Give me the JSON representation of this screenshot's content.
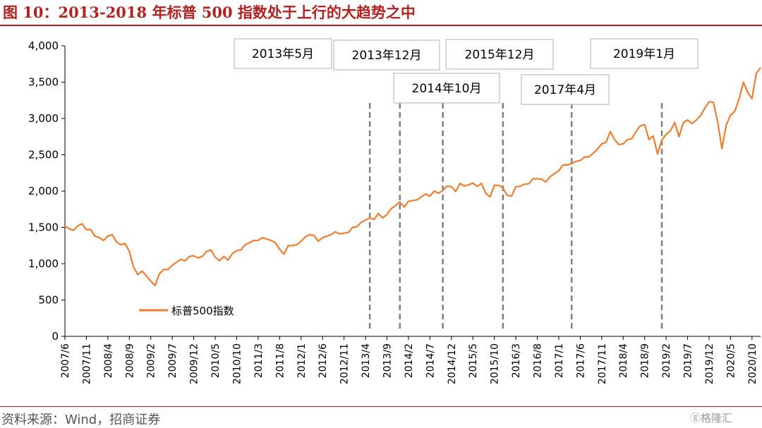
{
  "figure": {
    "title": "图 10：2013-2018 年标普 500 指数处于上行的大趋势之中",
    "source": "资料来源：Wind，招商证券",
    "watermark": "格隆汇",
    "colors": {
      "line": "#ed7d31",
      "rule": "#b22222",
      "dashed": "#7f7f7f"
    }
  },
  "chart_data": {
    "type": "line",
    "title": "",
    "xlabel": "",
    "ylabel": "",
    "ylim": [
      0,
      4000
    ],
    "yticks": [
      0,
      500,
      1000,
      1500,
      2000,
      2500,
      3000,
      3500,
      4000
    ],
    "ytick_labels": [
      "0",
      "500",
      "1,000",
      "1,500",
      "2,000",
      "2,500",
      "3,000",
      "3,500",
      "4,000"
    ],
    "xlim": [
      "2007/6",
      "2020/12"
    ],
    "xtick_labels": [
      "2007/6",
      "2007/11",
      "2008/4",
      "2008/9",
      "2009/2",
      "2009/7",
      "2009/12",
      "2010/5",
      "2010/10",
      "2011/3",
      "2011/8",
      "2012/1",
      "2012/6",
      "2012/11",
      "2013/4",
      "2013/9",
      "2014/2",
      "2014/7",
      "2014/12",
      "2015/5",
      "2015/10",
      "2016/3",
      "2016/8",
      "2017/1",
      "2017/6",
      "2017/11",
      "2018/4",
      "2018/9",
      "2019/2",
      "2019/7",
      "2019/12",
      "2020/5",
      "2020/10"
    ],
    "grid": false,
    "legend": {
      "position": "lower-left"
    },
    "series": [
      {
        "name": "标普500指数",
        "points": [
          [
            "2007/6",
            1520
          ],
          [
            "2007/7",
            1480
          ],
          [
            "2007/8",
            1460
          ],
          [
            "2007/9",
            1520
          ],
          [
            "2007/10",
            1550
          ],
          [
            "2007/11",
            1470
          ],
          [
            "2007/12",
            1470
          ],
          [
            "2008/1",
            1380
          ],
          [
            "2008/2",
            1360
          ],
          [
            "2008/3",
            1320
          ],
          [
            "2008/4",
            1380
          ],
          [
            "2008/5",
            1400
          ],
          [
            "2008/6",
            1300
          ],
          [
            "2008/7",
            1260
          ],
          [
            "2008/8",
            1280
          ],
          [
            "2008/9",
            1170
          ],
          [
            "2008/10",
            950
          ],
          [
            "2008/11",
            850
          ],
          [
            "2008/12",
            900
          ],
          [
            "2009/1",
            830
          ],
          [
            "2009/2",
            760
          ],
          [
            "2009/3",
            700
          ],
          [
            "2009/4",
            860
          ],
          [
            "2009/5",
            920
          ],
          [
            "2009/6",
            920
          ],
          [
            "2009/7",
            980
          ],
          [
            "2009/8",
            1020
          ],
          [
            "2009/9",
            1060
          ],
          [
            "2009/10",
            1040
          ],
          [
            "2009/11",
            1100
          ],
          [
            "2009/12",
            1110
          ],
          [
            "2010/1",
            1080
          ],
          [
            "2010/2",
            1100
          ],
          [
            "2010/3",
            1170
          ],
          [
            "2010/4",
            1190
          ],
          [
            "2010/5",
            1090
          ],
          [
            "2010/6",
            1040
          ],
          [
            "2010/7",
            1100
          ],
          [
            "2010/8",
            1050
          ],
          [
            "2010/9",
            1140
          ],
          [
            "2010/10",
            1180
          ],
          [
            "2010/11",
            1190
          ],
          [
            "2010/12",
            1260
          ],
          [
            "2011/1",
            1290
          ],
          [
            "2011/2",
            1320
          ],
          [
            "2011/3",
            1320
          ],
          [
            "2011/4",
            1360
          ],
          [
            "2011/5",
            1340
          ],
          [
            "2011/6",
            1320
          ],
          [
            "2011/7",
            1290
          ],
          [
            "2011/8",
            1200
          ],
          [
            "2011/9",
            1130
          ],
          [
            "2011/10",
            1250
          ],
          [
            "2011/11",
            1250
          ],
          [
            "2011/12",
            1260
          ],
          [
            "2012/1",
            1310
          ],
          [
            "2012/2",
            1370
          ],
          [
            "2012/3",
            1400
          ],
          [
            "2012/4",
            1390
          ],
          [
            "2012/5",
            1310
          ],
          [
            "2012/6",
            1360
          ],
          [
            "2012/7",
            1380
          ],
          [
            "2012/8",
            1400
          ],
          [
            "2012/9",
            1440
          ],
          [
            "2012/10",
            1410
          ],
          [
            "2012/11",
            1420
          ],
          [
            "2012/12",
            1430
          ],
          [
            "2013/1",
            1500
          ],
          [
            "2013/2",
            1510
          ],
          [
            "2013/3",
            1570
          ],
          [
            "2013/4",
            1600
          ],
          [
            "2013/5",
            1630
          ],
          [
            "2013/6",
            1610
          ],
          [
            "2013/7",
            1690
          ],
          [
            "2013/8",
            1630
          ],
          [
            "2013/9",
            1680
          ],
          [
            "2013/10",
            1760
          ],
          [
            "2013/11",
            1800
          ],
          [
            "2013/12",
            1850
          ],
          [
            "2014/1",
            1780
          ],
          [
            "2014/2",
            1860
          ],
          [
            "2014/3",
            1870
          ],
          [
            "2014/4",
            1880
          ],
          [
            "2014/5",
            1920
          ],
          [
            "2014/6",
            1960
          ],
          [
            "2014/7",
            1930
          ],
          [
            "2014/8",
            2000
          ],
          [
            "2014/9",
            1970
          ],
          [
            "2014/10",
            2010
          ],
          [
            "2014/11",
            2070
          ],
          [
            "2014/12",
            2060
          ],
          [
            "2015/1",
            1995
          ],
          [
            "2015/2",
            2105
          ],
          [
            "2015/3",
            2070
          ],
          [
            "2015/4",
            2085
          ],
          [
            "2015/5",
            2110
          ],
          [
            "2015/6",
            2065
          ],
          [
            "2015/7",
            2105
          ],
          [
            "2015/8",
            1970
          ],
          [
            "2015/9",
            1920
          ],
          [
            "2015/10",
            2080
          ],
          [
            "2015/11",
            2080
          ],
          [
            "2015/12",
            2045
          ],
          [
            "2016/1",
            1940
          ],
          [
            "2016/2",
            1930
          ],
          [
            "2016/3",
            2060
          ],
          [
            "2016/4",
            2065
          ],
          [
            "2016/5",
            2095
          ],
          [
            "2016/6",
            2100
          ],
          [
            "2016/7",
            2170
          ],
          [
            "2016/8",
            2170
          ],
          [
            "2016/9",
            2165
          ],
          [
            "2016/10",
            2125
          ],
          [
            "2016/11",
            2200
          ],
          [
            "2016/12",
            2240
          ],
          [
            "2017/1",
            2280
          ],
          [
            "2017/2",
            2360
          ],
          [
            "2017/3",
            2360
          ],
          [
            "2017/4",
            2380
          ],
          [
            "2017/5",
            2410
          ],
          [
            "2017/6",
            2420
          ],
          [
            "2017/7",
            2470
          ],
          [
            "2017/8",
            2470
          ],
          [
            "2017/9",
            2520
          ],
          [
            "2017/10",
            2575
          ],
          [
            "2017/11",
            2650
          ],
          [
            "2017/12",
            2670
          ],
          [
            "2018/1",
            2820
          ],
          [
            "2018/2",
            2710
          ],
          [
            "2018/3",
            2640
          ],
          [
            "2018/4",
            2650
          ],
          [
            "2018/5",
            2710
          ],
          [
            "2018/6",
            2720
          ],
          [
            "2018/7",
            2820
          ],
          [
            "2018/8",
            2900
          ],
          [
            "2018/9",
            2915
          ],
          [
            "2018/10",
            2710
          ],
          [
            "2018/11",
            2760
          ],
          [
            "2018/12",
            2510
          ],
          [
            "2019/1",
            2700
          ],
          [
            "2019/2",
            2780
          ],
          [
            "2019/3",
            2830
          ],
          [
            "2019/4",
            2945
          ],
          [
            "2019/5",
            2750
          ],
          [
            "2019/6",
            2940
          ],
          [
            "2019/7",
            2980
          ],
          [
            "2019/8",
            2930
          ],
          [
            "2019/9",
            2975
          ],
          [
            "2019/10",
            3040
          ],
          [
            "2019/11",
            3140
          ],
          [
            "2019/12",
            3230
          ],
          [
            "2020/1",
            3225
          ],
          [
            "2020/2",
            2955
          ],
          [
            "2020/3",
            2585
          ],
          [
            "2020/4",
            2910
          ],
          [
            "2020/5",
            3045
          ],
          [
            "2020/6",
            3100
          ],
          [
            "2020/7",
            3270
          ],
          [
            "2020/8",
            3500
          ],
          [
            "2020/9",
            3360
          ],
          [
            "2020/10",
            3270
          ],
          [
            "2020/11",
            3620
          ],
          [
            "2020/12",
            3700
          ]
        ]
      }
    ],
    "annotations": [
      {
        "label": "2013年5月",
        "x": "2013/5"
      },
      {
        "label": "2013年12月",
        "x": "2013/12"
      },
      {
        "label": "2014年10月",
        "x": "2014/10"
      },
      {
        "label": "2015年12月",
        "x": "2015/12"
      },
      {
        "label": "2017年4月",
        "x": "2017/4"
      },
      {
        "label": "2019年1月",
        "x": "2019/1"
      }
    ]
  }
}
